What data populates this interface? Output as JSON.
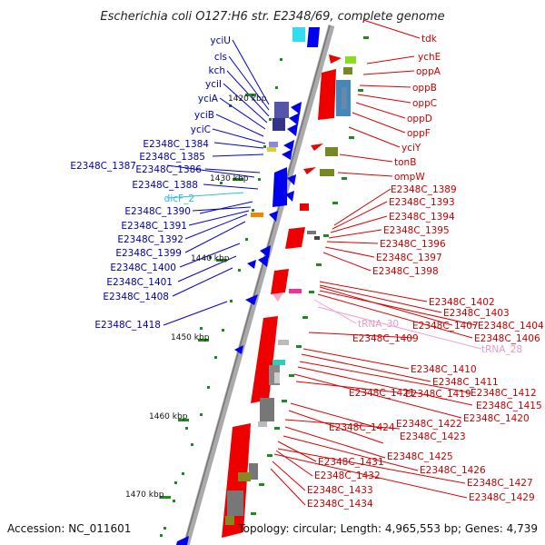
{
  "title": "Escherichia coli O127:H6 str. E2348/69, complete genome",
  "footer": {
    "accession": "Accession: NC_011601",
    "topology": "Topology: circular; Length: 4,965,553 bp; Genes: 4,739"
  },
  "ticks": [
    "1420 kbp",
    "1430 kbp",
    "1440 kbp",
    "1450 kbp",
    "1460 kbp",
    "1470 kbp"
  ],
  "left_labels": [
    "yciU",
    "cls",
    "kch",
    "yciI",
    "yciA",
    "yciB",
    "yciC",
    "E2348C_1384",
    "E2348C_1385",
    "E2348C_1387",
    "E2348C_1386",
    "E2348C_1388",
    "dicF_2",
    "E2348C_1390",
    "E2348C_1391",
    "E2348C_1392",
    "E2348C_1399",
    "E2348C_1400",
    "E2348C_1401",
    "E2348C_1408",
    "E2348C_1418"
  ],
  "right_labels": [
    "tdk",
    "ychE",
    "oppA",
    "oppB",
    "oppC",
    "oppD",
    "oppF",
    "yciY",
    "tonB",
    "ompW",
    "E2348C_1389",
    "E2348C_1393",
    "E2348C_1394",
    "E2348C_1395",
    "E2348C_1396",
    "E2348C_1397",
    "E2348C_1398",
    "E2348C_1402",
    "E2348C_1403",
    "tRNA_30",
    "E2348C_1407",
    "E2348C_1404",
    "E2348C_1409",
    "E2348C_1406",
    "tRNA_28",
    "E2348C_1410",
    "E2348C_1411",
    "E2348C_1421",
    "E2348C_1419",
    "E2348C_1412",
    "E2348C_1415",
    "E2348C_1420",
    "E2348C_1424",
    "E2348C_1422",
    "E2348C_1423",
    "E2348C_1425",
    "E2348C_1431",
    "E2348C_1426",
    "E2348C_1432",
    "E2348C_1427",
    "E2348C_1433",
    "E2348C_1429",
    "E2348C_1434"
  ],
  "colors": {
    "backbone": "#999999",
    "forward_gene": "#0000ee",
    "reverse_gene": "#ee0000",
    "left_label": "#0000aa",
    "right_label": "#cc0000",
    "trna": "#e59acb",
    "ncrna": "#33bbdd",
    "gc_track": "#228822"
  }
}
